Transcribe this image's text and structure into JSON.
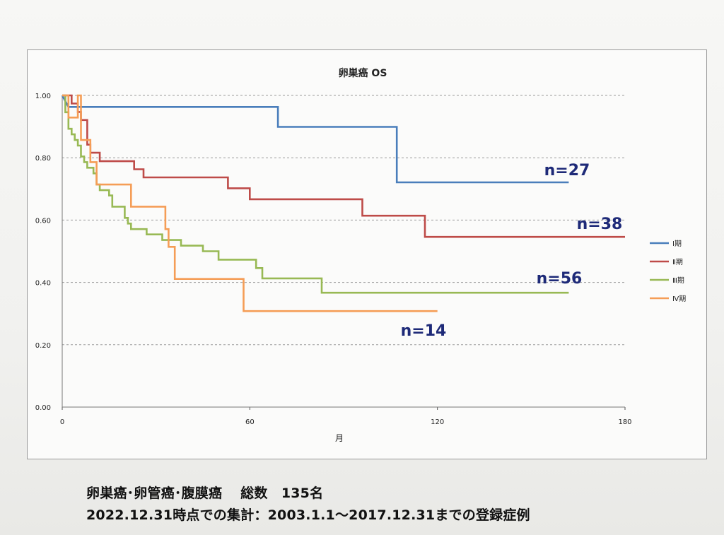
{
  "caption": {
    "line1": "卵巣癌･卵管癌･腹膜癌　 総数　135名",
    "line2": "2022.12.31時点での集計：2003.1.1～2017.12.31までの登録症例"
  },
  "chart_data": {
    "type": "line",
    "step": true,
    "title": "卵巣癌 OS",
    "xlabel": "月",
    "ylabel": "",
    "xlim": [
      0,
      180
    ],
    "ylim": [
      0,
      1
    ],
    "x_ticks": [
      "0",
      "60",
      "120",
      "180"
    ],
    "y_ticks": [
      "0.00",
      "0.20",
      "0.40",
      "0.60",
      "0.80",
      "1.00"
    ],
    "grid": "horizontal dashed",
    "legend_position": "right",
    "series": [
      {
        "name": "Ⅰ期",
        "color": "#4a7ebb",
        "n_label": "n=27",
        "points": [
          [
            0,
            1.0
          ],
          [
            2,
            0.963
          ],
          [
            69,
            0.963
          ],
          [
            69,
            0.899
          ],
          [
            107,
            0.899
          ],
          [
            107,
            0.721
          ],
          [
            162,
            0.721
          ]
        ]
      },
      {
        "name": "Ⅱ期",
        "color": "#be4b48",
        "n_label": "n=38",
        "points": [
          [
            0,
            1.0
          ],
          [
            3,
            1.0
          ],
          [
            3,
            0.974
          ],
          [
            5,
            0.974
          ],
          [
            5,
            0.947
          ],
          [
            6,
            0.947
          ],
          [
            6,
            0.921
          ],
          [
            8,
            0.921
          ],
          [
            8,
            0.842
          ],
          [
            9,
            0.842
          ],
          [
            9,
            0.816
          ],
          [
            12,
            0.816
          ],
          [
            12,
            0.789
          ],
          [
            23,
            0.789
          ],
          [
            23,
            0.763
          ],
          [
            26,
            0.763
          ],
          [
            26,
            0.737
          ],
          [
            53,
            0.737
          ],
          [
            53,
            0.702
          ],
          [
            60,
            0.702
          ],
          [
            60,
            0.667
          ],
          [
            96,
            0.667
          ],
          [
            96,
            0.614
          ],
          [
            116,
            0.614
          ],
          [
            116,
            0.546
          ],
          [
            180,
            0.546
          ]
        ]
      },
      {
        "name": "Ⅲ期",
        "color": "#98b954",
        "n_label": "n=56",
        "points": [
          [
            0,
            1.0
          ],
          [
            1,
            1.0
          ],
          [
            1,
            0.946
          ],
          [
            2,
            0.946
          ],
          [
            2,
            0.893
          ],
          [
            3,
            0.893
          ],
          [
            3,
            0.875
          ],
          [
            4,
            0.875
          ],
          [
            4,
            0.857
          ],
          [
            5,
            0.857
          ],
          [
            5,
            0.839
          ],
          [
            6,
            0.839
          ],
          [
            6,
            0.804
          ],
          [
            7,
            0.804
          ],
          [
            7,
            0.786
          ],
          [
            8,
            0.786
          ],
          [
            8,
            0.768
          ],
          [
            10,
            0.768
          ],
          [
            10,
            0.75
          ],
          [
            11,
            0.75
          ],
          [
            11,
            0.714
          ],
          [
            12,
            0.714
          ],
          [
            12,
            0.696
          ],
          [
            15,
            0.696
          ],
          [
            15,
            0.679
          ],
          [
            16,
            0.679
          ],
          [
            16,
            0.643
          ],
          [
            20,
            0.643
          ],
          [
            20,
            0.607
          ],
          [
            21,
            0.607
          ],
          [
            21,
            0.589
          ],
          [
            22,
            0.589
          ],
          [
            22,
            0.571
          ],
          [
            27,
            0.571
          ],
          [
            27,
            0.554
          ],
          [
            32,
            0.554
          ],
          [
            32,
            0.536
          ],
          [
            38,
            0.536
          ],
          [
            38,
            0.518
          ],
          [
            45,
            0.518
          ],
          [
            45,
            0.5
          ],
          [
            50,
            0.5
          ],
          [
            50,
            0.473
          ],
          [
            62,
            0.473
          ],
          [
            62,
            0.446
          ],
          [
            64,
            0.446
          ],
          [
            64,
            0.413
          ],
          [
            83,
            0.413
          ],
          [
            83,
            0.367
          ],
          [
            162,
            0.367
          ]
        ]
      },
      {
        "name": "Ⅳ期",
        "color": "#f59d56",
        "n_label": "n=14",
        "points": [
          [
            0,
            1.0
          ],
          [
            2,
            1.0
          ],
          [
            2,
            0.929
          ],
          [
            5,
            0.929
          ],
          [
            5,
            1.0
          ],
          [
            6,
            1.0
          ],
          [
            6,
            0.857
          ],
          [
            9,
            0.857
          ],
          [
            9,
            0.786
          ],
          [
            11,
            0.786
          ],
          [
            11,
            0.714
          ],
          [
            22,
            0.714
          ],
          [
            22,
            0.643
          ],
          [
            33,
            0.643
          ],
          [
            33,
            0.571
          ],
          [
            34,
            0.571
          ],
          [
            34,
            0.514
          ],
          [
            36,
            0.514
          ],
          [
            36,
            0.411
          ],
          [
            58,
            0.411
          ],
          [
            58,
            0.308
          ],
          [
            120,
            0.308
          ]
        ]
      }
    ]
  }
}
